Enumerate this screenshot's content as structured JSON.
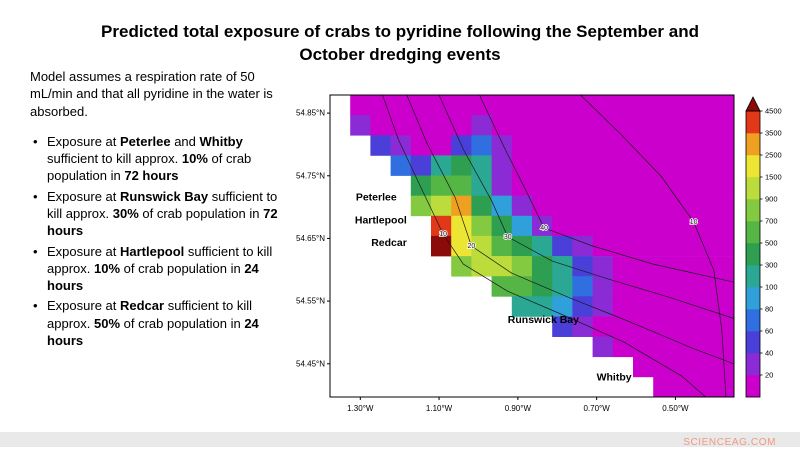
{
  "title": "Predicted total exposure of crabs to pyridine following the September and October dredging events",
  "notes": {
    "intro": "Model assumes a respiration rate of 50 mL/min and that all pyridine in the water is absorbed.",
    "bullets": [
      {
        "segments": [
          {
            "t": "Exposure at "
          },
          {
            "t": "Peterlee",
            "b": true
          },
          {
            "t": " and "
          },
          {
            "t": "Whitby",
            "b": true
          },
          {
            "t": " sufficient to kill approx. "
          },
          {
            "t": "10%",
            "b": true
          },
          {
            "t": " of crab population in "
          },
          {
            "t": "72 hours",
            "b": true
          }
        ]
      },
      {
        "segments": [
          {
            "t": "Exposure at "
          },
          {
            "t": "Runswick Bay",
            "b": true
          },
          {
            "t": " sufficient to kill approx. "
          },
          {
            "t": "30%",
            "b": true
          },
          {
            "t": " of crab population in "
          },
          {
            "t": "72 hours",
            "b": true
          }
        ]
      },
      {
        "segments": [
          {
            "t": "Exposure at "
          },
          {
            "t": "Hartlepool",
            "b": true
          },
          {
            "t": " sufficient to kill approx. "
          },
          {
            "t": "10%",
            "b": true
          },
          {
            "t": " of crab population in "
          },
          {
            "t": "24 hours",
            "b": true
          }
        ]
      },
      {
        "segments": [
          {
            "t": "Exposure at "
          },
          {
            "t": "Redcar",
            "b": true
          },
          {
            "t": " sufficient to kill approx. "
          },
          {
            "t": "50%",
            "b": true
          },
          {
            "t": " of crab population in "
          },
          {
            "t": "24 hours",
            "b": true
          }
        ]
      }
    ]
  },
  "watermark": "SCIENCEAG.COM",
  "chart_data": {
    "type": "heatmap",
    "title": "Predicted total exposure of crabs to pyridine following the September and October dredging events",
    "axes": {
      "x_ticks": [
        {
          "label": "1.30°W",
          "f": 0.075
        },
        {
          "label": "1.10°W",
          "f": 0.27
        },
        {
          "label": "0.90°W",
          "f": 0.465
        },
        {
          "label": "0.70°W",
          "f": 0.66
        },
        {
          "label": "0.50°W",
          "f": 0.855
        }
      ],
      "y_ticks": [
        {
          "label": "54.85°N",
          "f": 0.06
        },
        {
          "label": "54.75°N",
          "f": 0.2675
        },
        {
          "label": "54.65°N",
          "f": 0.475
        },
        {
          "label": "54.55°N",
          "f": 0.6825
        },
        {
          "label": "54.45°N",
          "f": 0.89
        }
      ]
    },
    "scale": {
      "levels": [
        20,
        40,
        60,
        80,
        100,
        300,
        500,
        700,
        900,
        1500,
        2500,
        3500,
        4500
      ],
      "colors": [
        "#CC00CC",
        "#8A2BD6",
        "#4A3FD9",
        "#2F6FE0",
        "#2FA0D9",
        "#2AA893",
        "#2E9E50",
        "#55B545",
        "#84CA40",
        "#BCDC3C",
        "#EDE534",
        "#F0A020",
        "#E03818",
        "#8B0A0A"
      ]
    },
    "grid": {
      "note": "exposure values on a lat/lon grid; null = land (white)",
      "values": [
        [
          null,
          10,
          10,
          10,
          10,
          10,
          10,
          10,
          10,
          10,
          10,
          10,
          10,
          10,
          10,
          10,
          10,
          10,
          10,
          10
        ],
        [
          null,
          20,
          10,
          10,
          10,
          10,
          10,
          20,
          10,
          10,
          10,
          10,
          10,
          10,
          10,
          10,
          10,
          10,
          10,
          10
        ],
        [
          null,
          null,
          40,
          20,
          10,
          10,
          40,
          60,
          20,
          10,
          10,
          10,
          10,
          10,
          10,
          10,
          10,
          10,
          10,
          10
        ],
        [
          null,
          null,
          null,
          60,
          40,
          100,
          300,
          100,
          20,
          10,
          10,
          10,
          10,
          10,
          10,
          10,
          10,
          10,
          10,
          10
        ],
        [
          null,
          null,
          null,
          null,
          300,
          500,
          500,
          100,
          20,
          10,
          10,
          10,
          10,
          10,
          10,
          10,
          10,
          10,
          10,
          10
        ],
        [
          null,
          null,
          null,
          null,
          700,
          900,
          2500,
          300,
          80,
          20,
          10,
          10,
          10,
          10,
          10,
          10,
          10,
          10,
          10,
          10
        ],
        [
          null,
          null,
          null,
          null,
          null,
          3500,
          1500,
          700,
          300,
          80,
          20,
          10,
          10,
          10,
          10,
          10,
          10,
          10,
          10,
          10
        ],
        [
          null,
          null,
          null,
          null,
          null,
          4500,
          1500,
          900,
          500,
          300,
          100,
          40,
          20,
          10,
          10,
          10,
          10,
          10,
          10,
          10
        ],
        [
          null,
          null,
          null,
          null,
          null,
          null,
          700,
          900,
          900,
          700,
          300,
          100,
          40,
          20,
          10,
          10,
          10,
          10,
          10,
          10
        ],
        [
          null,
          null,
          null,
          null,
          null,
          null,
          null,
          null,
          500,
          500,
          300,
          100,
          60,
          20,
          10,
          10,
          10,
          10,
          10,
          10
        ],
        [
          null,
          null,
          null,
          null,
          null,
          null,
          null,
          null,
          null,
          100,
          100,
          80,
          40,
          20,
          10,
          10,
          10,
          10,
          10,
          10
        ],
        [
          null,
          null,
          null,
          null,
          null,
          null,
          null,
          null,
          null,
          null,
          null,
          40,
          20,
          10,
          10,
          10,
          10,
          10,
          10,
          10
        ],
        [
          null,
          null,
          null,
          null,
          null,
          null,
          null,
          null,
          null,
          null,
          null,
          null,
          null,
          20,
          10,
          10,
          10,
          10,
          10,
          10
        ],
        [
          null,
          null,
          null,
          null,
          null,
          null,
          null,
          null,
          null,
          null,
          null,
          null,
          null,
          null,
          null,
          10,
          10,
          10,
          10,
          10
        ],
        [
          null,
          null,
          null,
          null,
          null,
          null,
          null,
          null,
          null,
          null,
          null,
          null,
          null,
          null,
          null,
          null,
          10,
          10,
          10,
          10
        ]
      ]
    },
    "places": [
      {
        "name": "Peterlee",
        "fx": 0.165,
        "fy": 0.35,
        "anchor": "end"
      },
      {
        "name": "Hartlepool",
        "fx": 0.19,
        "fy": 0.425,
        "anchor": "end"
      },
      {
        "name": "Redcar",
        "fx": 0.19,
        "fy": 0.5,
        "anchor": "end"
      },
      {
        "name": "Runswick Bay",
        "fx": 0.44,
        "fy": 0.755,
        "anchor": "start"
      },
      {
        "name": "Whitby",
        "fx": 0.66,
        "fy": 0.945,
        "anchor": "start"
      }
    ],
    "contours": [
      {
        "label": "10",
        "label_at": 3,
        "points": [
          [
            0.13,
            0
          ],
          [
            0.17,
            0.15
          ],
          [
            0.23,
            0.32
          ],
          [
            0.28,
            0.46
          ],
          [
            0.33,
            0.56
          ],
          [
            0.44,
            0.65
          ],
          [
            0.58,
            0.73
          ],
          [
            0.73,
            0.82
          ],
          [
            0.87,
            0.93
          ],
          [
            0.93,
            1.0
          ]
        ]
      },
      {
        "label": "20",
        "label_at": 3,
        "points": [
          [
            0.19,
            0
          ],
          [
            0.24,
            0.16
          ],
          [
            0.31,
            0.34
          ],
          [
            0.35,
            0.5
          ],
          [
            0.45,
            0.59
          ],
          [
            0.59,
            0.67
          ],
          [
            0.74,
            0.75
          ],
          [
            0.9,
            0.84
          ],
          [
            1.0,
            0.89
          ]
        ]
      },
      {
        "label": "30",
        "label_at": 3,
        "points": [
          [
            0.27,
            0
          ],
          [
            0.33,
            0.18
          ],
          [
            0.4,
            0.35
          ],
          [
            0.44,
            0.47
          ],
          [
            0.55,
            0.55
          ],
          [
            0.69,
            0.61
          ],
          [
            0.84,
            0.67
          ],
          [
            1.0,
            0.74
          ]
        ]
      },
      {
        "label": "40",
        "label_at": 3,
        "points": [
          [
            0.37,
            0
          ],
          [
            0.43,
            0.17
          ],
          [
            0.49,
            0.33
          ],
          [
            0.53,
            0.44
          ],
          [
            0.65,
            0.5
          ],
          [
            0.8,
            0.56
          ],
          [
            1.0,
            0.62
          ]
        ]
      },
      {
        "label": "10",
        "label_at": 3,
        "points": [
          [
            0.62,
            0
          ],
          [
            0.72,
            0.13
          ],
          [
            0.82,
            0.27
          ],
          [
            0.9,
            0.42
          ],
          [
            0.95,
            0.58
          ],
          [
            0.97,
            0.78
          ],
          [
            0.98,
            1.0
          ]
        ]
      }
    ]
  }
}
